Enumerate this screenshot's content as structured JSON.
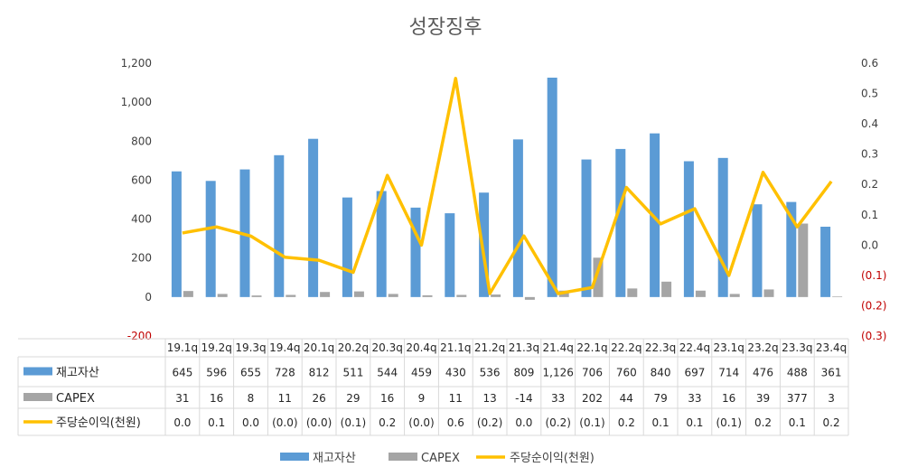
{
  "chart_data": {
    "type": "bar",
    "title": "성장징후",
    "categories": [
      "19.1q",
      "19.2q",
      "19.3q",
      "19.4q",
      "20.1q",
      "20.2q",
      "20.3q",
      "20.4q",
      "21.1q",
      "21.2q",
      "21.3q",
      "21.4q",
      "22.1q",
      "22.2q",
      "22.3q",
      "22.4q",
      "23.1q",
      "23.2q",
      "23.3q",
      "23.4q"
    ],
    "series": [
      {
        "name": "재고자산",
        "kind": "bar",
        "axis": "left",
        "color": "#5b9bd5",
        "values": [
          645,
          596,
          655,
          728,
          812,
          511,
          544,
          459,
          430,
          536,
          809,
          1126,
          706,
          760,
          840,
          697,
          714,
          476,
          488,
          361
        ],
        "labels": [
          "645",
          "596",
          "655",
          "728",
          "812",
          "511",
          "544",
          "459",
          "430",
          "536",
          "809",
          "1,126",
          "706",
          "760",
          "840",
          "697",
          "714",
          "476",
          "488",
          "361"
        ]
      },
      {
        "name": "CAPEX",
        "kind": "bar",
        "axis": "left",
        "color": "#a5a5a5",
        "values": [
          31,
          16,
          8,
          11,
          26,
          29,
          16,
          9,
          11,
          13,
          -14,
          33,
          202,
          44,
          79,
          33,
          16,
          39,
          377,
          3
        ],
        "labels": [
          "31",
          "16",
          "8",
          "11",
          "26",
          "29",
          "16",
          "9",
          "11",
          "13",
          "-14",
          "33",
          "202",
          "44",
          "79",
          "33",
          "16",
          "39",
          "377",
          "3"
        ]
      },
      {
        "name": "주당순이익(천원)",
        "kind": "line",
        "axis": "right",
        "color": "#ffc000",
        "values": [
          0.04,
          0.06,
          0.03,
          -0.04,
          -0.05,
          -0.09,
          0.23,
          0.0,
          0.55,
          -0.16,
          0.03,
          -0.16,
          -0.14,
          0.19,
          0.07,
          0.12,
          -0.1,
          0.24,
          0.06,
          0.21
        ],
        "labels": [
          "0.0",
          "0.1",
          "0.0",
          "(0.0)",
          "(0.0)",
          "(0.1)",
          "0.2",
          "(0.0)",
          "0.6",
          "(0.2)",
          "0.0",
          "(0.2)",
          "(0.1)",
          "0.2",
          "0.1",
          "0.1",
          "(0.1)",
          "0.2",
          "0.1",
          "0.2"
        ]
      }
    ],
    "left_axis": {
      "min": -200,
      "max": 1200,
      "step": 200,
      "tick_labels": [
        "-200",
        "0",
        "200",
        "400",
        "600",
        "800",
        "1,000",
        "1,200"
      ]
    },
    "right_axis": {
      "min": -0.3,
      "max": 0.6,
      "step": 0.1,
      "tick_labels": [
        "(0.3)",
        "(0.2)",
        "(0.1)",
        "0.0",
        "0.1",
        "0.2",
        "0.3",
        "0.4",
        "0.5",
        "0.6"
      ]
    },
    "grid": false,
    "legend_position": "bottom",
    "negative_color": "#c00000"
  }
}
